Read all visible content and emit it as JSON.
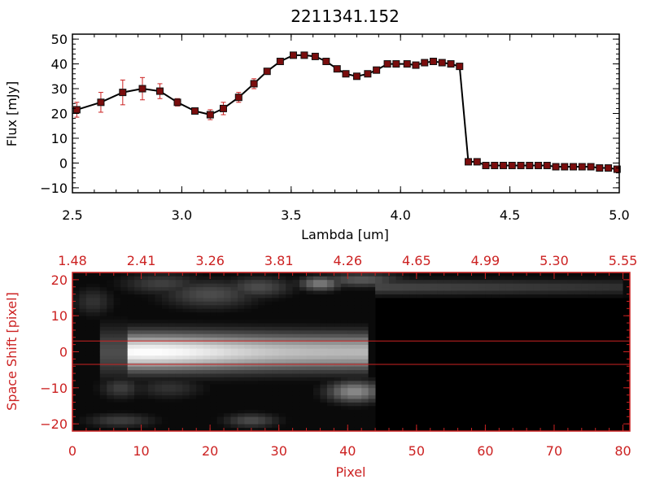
{
  "title": "2211341.152",
  "chart_data": [
    {
      "type": "line",
      "xlabel": "Lambda [um]",
      "ylabel": "Flux [mJy]",
      "xlim": [
        2.5,
        5.0
      ],
      "ylim": [
        -12,
        52
      ],
      "xticks": [
        "2.5",
        "3.0",
        "3.5",
        "4.0",
        "4.5",
        "5.0"
      ],
      "yticks": [
        "−10",
        "0",
        "10",
        "20",
        "30",
        "40",
        "50"
      ],
      "line_color": "#000000",
      "marker_color": "#cc2222",
      "series": [
        {
          "x": [
            2.52,
            2.63,
            2.73,
            2.82,
            2.9,
            2.98,
            3.06,
            3.13,
            3.19,
            3.26,
            3.33,
            3.39,
            3.45,
            3.51,
            3.56,
            3.61,
            3.66,
            3.71,
            3.75,
            3.8,
            3.85,
            3.89,
            3.94,
            3.98,
            4.03,
            4.07,
            4.11,
            4.15,
            4.19,
            4.23,
            4.27,
            4.31,
            4.35,
            4.39,
            4.43,
            4.47,
            4.51,
            4.55,
            4.59,
            4.63,
            4.67,
            4.71,
            4.75,
            4.79,
            4.83,
            4.87,
            4.91,
            4.95,
            4.99
          ],
          "y": [
            21.5,
            24.5,
            28.5,
            30,
            29,
            24.5,
            21,
            19.5,
            22,
            26.5,
            32,
            37,
            41,
            43.5,
            43.5,
            43,
            41,
            38,
            36,
            35,
            36,
            37.5,
            40,
            40,
            40,
            39.5,
            40.5,
            41,
            40.5,
            40,
            39,
            0.5,
            0.5,
            -1,
            -1,
            -1,
            -1,
            -1,
            -1,
            -1,
            -1,
            -1.5,
            -1.5,
            -1.5,
            -1.5,
            -1.5,
            -2,
            -2,
            -2.5
          ],
          "yerr": [
            3,
            4,
            5,
            4.5,
            3,
            1.5,
            1,
            2,
            2.5,
            2,
            2,
            1,
            0.5,
            0.5,
            0.5,
            0.5,
            0.5,
            0.5,
            0.5,
            0.5,
            0.5,
            0.5,
            0.5,
            0.5,
            0.5,
            0.5,
            0.5,
            0.5,
            0.5,
            0.5,
            0.5,
            0.3,
            0.3,
            0.3,
            0.3,
            0.3,
            0.3,
            0.3,
            0.3,
            0.3,
            0.3,
            0.3,
            0.3,
            0.3,
            0.3,
            0.3,
            0.3,
            0.3,
            0.3
          ]
        }
      ]
    },
    {
      "type": "heatmap",
      "xlabel": "Pixel",
      "ylabel": "Space Shift [pixel]",
      "xlim": [
        0,
        81
      ],
      "ylim": [
        -22,
        22
      ],
      "xticks": [
        "0",
        "10",
        "20",
        "30",
        "40",
        "50",
        "60",
        "70",
        "80"
      ],
      "yticks": [
        "−20",
        "−10",
        "0",
        "10",
        "20"
      ],
      "top_xticks": [
        "1.48",
        "2.41",
        "3.26",
        "3.81",
        "4.26",
        "4.65",
        "4.99",
        "5.30",
        "5.55"
      ],
      "axis_color": "#cc2222",
      "colormap": "grayscale",
      "extraction_window": [
        -3.5,
        3
      ],
      "spectrum_trace": {
        "x_start": 8,
        "x_end": 43,
        "y_center": 0,
        "peak_x": 11
      },
      "blobs": [
        {
          "x": 13,
          "y": 19,
          "w": 6,
          "h": 3,
          "v": 0.25
        },
        {
          "x": 20,
          "y": 16,
          "w": 7,
          "h": 4,
          "v": 0.3
        },
        {
          "x": 27,
          "y": 18,
          "w": 5,
          "h": 3,
          "v": 0.3
        },
        {
          "x": 36,
          "y": 19,
          "w": 3,
          "h": 2,
          "v": 0.5
        },
        {
          "x": 42,
          "y": 20,
          "w": 6,
          "h": 2,
          "v": 0.35
        },
        {
          "x": 3,
          "y": 14,
          "w": 3,
          "h": 4,
          "v": 0.2
        },
        {
          "x": 7,
          "y": -10,
          "w": 3,
          "h": 3,
          "v": 0.25
        },
        {
          "x": 14,
          "y": -10,
          "w": 5,
          "h": 3,
          "v": 0.2
        },
        {
          "x": 41,
          "y": -11,
          "w": 4,
          "h": 3,
          "v": 0.55
        },
        {
          "x": 7,
          "y": -19,
          "w": 5,
          "h": 2,
          "v": 0.25
        },
        {
          "x": 26,
          "y": -19,
          "w": 4,
          "h": 2,
          "v": 0.3
        }
      ],
      "top_band": {
        "x_start": 44,
        "x_end": 80,
        "y": 18,
        "v": 0.28
      }
    }
  ]
}
